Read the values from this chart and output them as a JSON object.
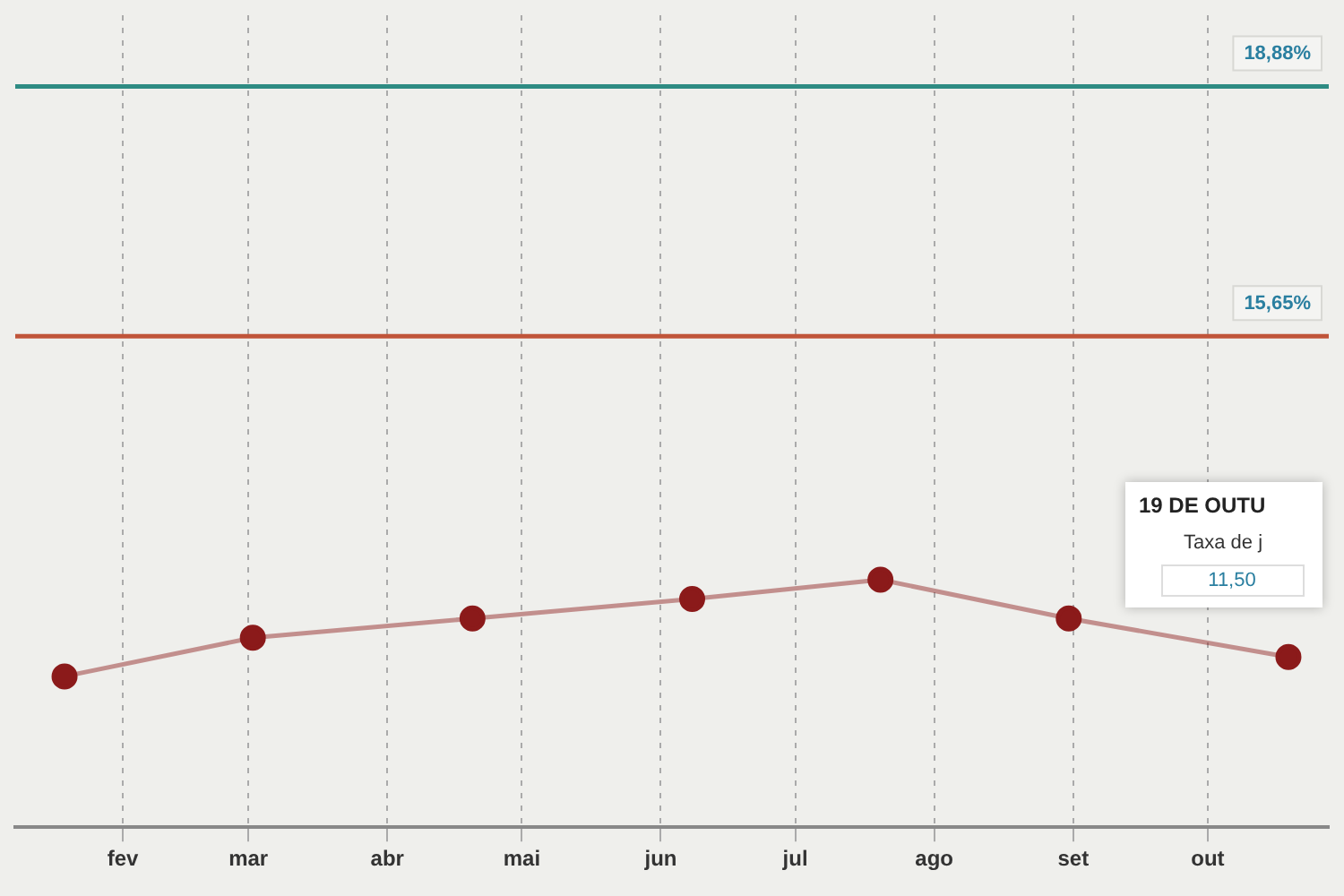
{
  "chart_data": {
    "type": "line",
    "x": [
      "--01-19",
      "--03-02",
      "--04-20",
      "--06-08",
      "--07-20",
      "--08-31",
      "--10-19"
    ],
    "series": [
      {
        "color": "#8b1a1a",
        "values": [
          11.25,
          11.75,
          12.0,
          12.25,
          12.5,
          12.0,
          11.5
        ]
      }
    ],
    "xlim": [
      "--01-08",
      "--10-28"
    ],
    "xticks": [
      {
        "value": "--02-01",
        "label": "fev"
      },
      {
        "value": "--03-01",
        "label": "mar"
      },
      {
        "value": "--04-01",
        "label": "abr"
      },
      {
        "value": "--05-01",
        "label": "mai"
      },
      {
        "value": "--06-01",
        "label": "jun"
      },
      {
        "value": "--07-01",
        "label": "jul"
      },
      {
        "value": "--08-01",
        "label": "ago"
      },
      {
        "value": "--09-01",
        "label": "set"
      },
      {
        "value": "--10-01",
        "label": "out"
      }
    ],
    "ylim": [
      9.3,
      19.8
    ],
    "ref_lines": [
      {
        "axis": "y",
        "value": 18.88,
        "label": "18,88%",
        "color": "#2e8b83"
      },
      {
        "axis": "y",
        "value": 15.65,
        "label": "15,65%",
        "color": "#c0553a"
      }
    ],
    "annotations": [
      "19 DE OUTU",
      "Taxa de j",
      "11,50"
    ],
    "grid": "x",
    "tick_labels": "x",
    "marker": "circle",
    "legend": false
  }
}
